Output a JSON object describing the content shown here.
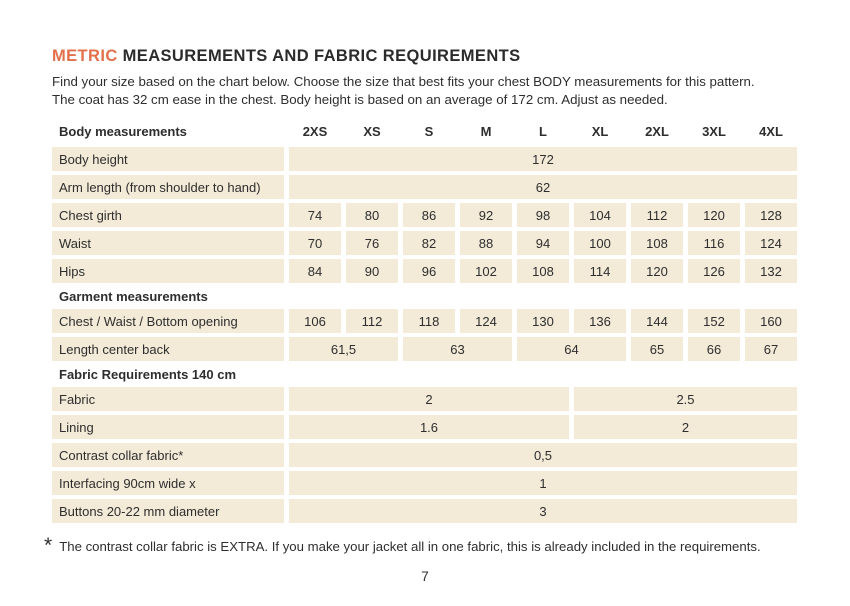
{
  "colors": {
    "accent": "#e2714b",
    "cell_background": "#f3ebd8",
    "text": "#2e2e2e"
  },
  "header": {
    "title_accent": "METRIC",
    "title_rest": " MEASUREMENTS AND FABRIC REQUIREMENTS",
    "intro_line1": "Find your size based on the chart below. Choose the size that best fits your chest BODY measurements for this pattern.",
    "intro_line2": "The coat has 32 cm ease in the chest. Body height is based on an average of 172 cm. Adjust as needed."
  },
  "table": {
    "header": {
      "label": "Body measurements",
      "sizes": [
        "2XS",
        "XS",
        "S",
        "M",
        "L",
        "XL",
        "2XL",
        "3XL",
        "4XL"
      ]
    },
    "rows": [
      {
        "type": "data",
        "label": "Body height",
        "cells": [
          {
            "value": "172",
            "span": 9
          }
        ]
      },
      {
        "type": "data",
        "label": "Arm length (from shoulder to hand)",
        "cells": [
          {
            "value": "62",
            "span": 9
          }
        ]
      },
      {
        "type": "data",
        "label": "Chest girth",
        "cells": [
          {
            "value": "74",
            "span": 1
          },
          {
            "value": "80",
            "span": 1
          },
          {
            "value": "86",
            "span": 1
          },
          {
            "value": "92",
            "span": 1
          },
          {
            "value": "98",
            "span": 1
          },
          {
            "value": "104",
            "span": 1
          },
          {
            "value": "112",
            "span": 1
          },
          {
            "value": "120",
            "span": 1
          },
          {
            "value": "128",
            "span": 1
          }
        ]
      },
      {
        "type": "data",
        "label": "Waist",
        "cells": [
          {
            "value": "70",
            "span": 1
          },
          {
            "value": "76",
            "span": 1
          },
          {
            "value": "82",
            "span": 1
          },
          {
            "value": "88",
            "span": 1
          },
          {
            "value": "94",
            "span": 1
          },
          {
            "value": "100",
            "span": 1
          },
          {
            "value": "108",
            "span": 1
          },
          {
            "value": "116",
            "span": 1
          },
          {
            "value": "124",
            "span": 1
          }
        ]
      },
      {
        "type": "data",
        "label": "Hips",
        "cells": [
          {
            "value": "84",
            "span": 1
          },
          {
            "value": "90",
            "span": 1
          },
          {
            "value": "96",
            "span": 1
          },
          {
            "value": "102",
            "span": 1
          },
          {
            "value": "108",
            "span": 1
          },
          {
            "value": "114",
            "span": 1
          },
          {
            "value": "120",
            "span": 1
          },
          {
            "value": "126",
            "span": 1
          },
          {
            "value": "132",
            "span": 1
          }
        ]
      },
      {
        "type": "section",
        "label": "Garment measurements"
      },
      {
        "type": "data",
        "label": "Chest / Waist / Bottom opening",
        "cells": [
          {
            "value": "106",
            "span": 1
          },
          {
            "value": "112",
            "span": 1
          },
          {
            "value": "118",
            "span": 1
          },
          {
            "value": "124",
            "span": 1
          },
          {
            "value": "130",
            "span": 1
          },
          {
            "value": "136",
            "span": 1
          },
          {
            "value": "144",
            "span": 1
          },
          {
            "value": "152",
            "span": 1
          },
          {
            "value": "160",
            "span": 1
          }
        ]
      },
      {
        "type": "data",
        "label": "Length center back",
        "cells": [
          {
            "value": "61,5",
            "span": 2
          },
          {
            "value": "63",
            "span": 2
          },
          {
            "value": "64",
            "span": 2
          },
          {
            "value": "65",
            "span": 1
          },
          {
            "value": "66",
            "span": 1
          },
          {
            "value": "67",
            "span": 1
          }
        ]
      },
      {
        "type": "section",
        "label": "Fabric Requirements 140 cm"
      },
      {
        "type": "data",
        "label": "Fabric",
        "cells": [
          {
            "value": "2",
            "span": 5
          },
          {
            "value": "2.5",
            "span": 4
          }
        ]
      },
      {
        "type": "data",
        "label": "Lining",
        "cells": [
          {
            "value": "1.6",
            "span": 5
          },
          {
            "value": "2",
            "span": 4
          }
        ]
      },
      {
        "type": "data",
        "label": "Contrast collar fabric*",
        "cells": [
          {
            "value": "0,5",
            "span": 9
          }
        ]
      },
      {
        "type": "data",
        "label": "Interfacing  90cm wide x",
        "cells": [
          {
            "value": "1",
            "span": 9
          }
        ]
      },
      {
        "type": "data",
        "label": "Buttons 20-22 mm diameter",
        "cells": [
          {
            "value": "3",
            "span": 9
          }
        ]
      }
    ]
  },
  "footer": {
    "footnote_marker": "*",
    "footnote_text": "The contrast collar fabric is EXTRA. If you make your jacket all in one fabric, this is already included in the requirements.",
    "page_number": "7"
  }
}
